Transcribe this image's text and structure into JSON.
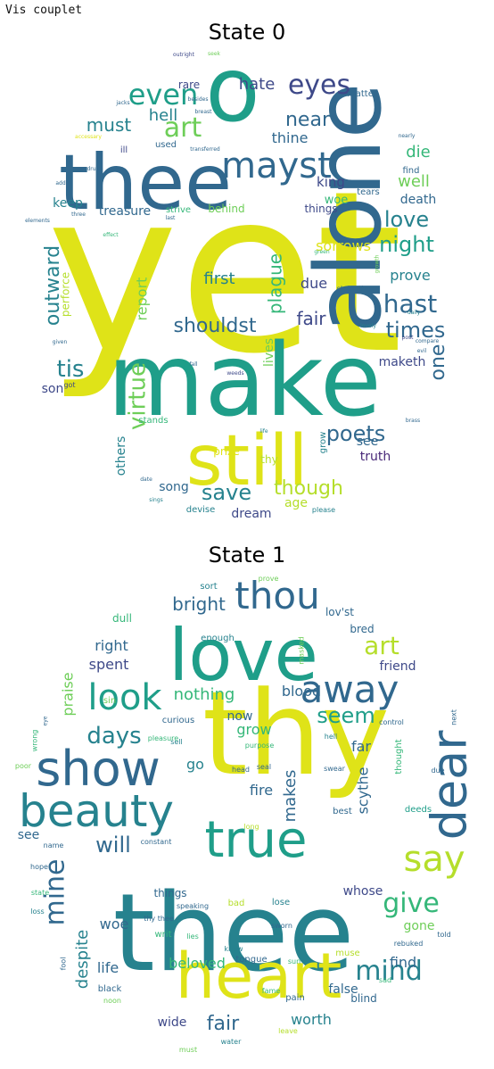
{
  "header": {
    "label": "Vis couplet"
  },
  "palette": [
    "#440154",
    "#482878",
    "#3e4989",
    "#31688e",
    "#26828e",
    "#1f9e89",
    "#35b779",
    "#6ece58",
    "#b5de2b",
    "#dfe318"
  ],
  "panels": [
    {
      "title": "State 0",
      "words": [
        {
          "t": "yet",
          "c": 9
        },
        {
          "t": "make",
          "c": 5
        },
        {
          "t": "still",
          "c": 9
        },
        {
          "t": "alone",
          "c": 3
        },
        {
          "t": "thee",
          "c": 3
        },
        {
          "t": "o",
          "c": 5
        },
        {
          "t": "mayst",
          "c": 3
        },
        {
          "t": "eyes",
          "c": 2
        },
        {
          "t": "even",
          "c": 5
        },
        {
          "t": "art",
          "c": 7
        },
        {
          "t": "near",
          "c": 3
        },
        {
          "t": "night",
          "c": 5
        },
        {
          "t": "love",
          "c": 4
        },
        {
          "t": "hast",
          "c": 3
        },
        {
          "t": "times",
          "c": 3
        },
        {
          "t": "shouldst",
          "c": 3
        },
        {
          "t": "virtue",
          "c": 7
        },
        {
          "t": "outward",
          "c": 4
        },
        {
          "t": "plague",
          "c": 6
        },
        {
          "t": "fair",
          "c": 2
        },
        {
          "t": "tis",
          "c": 4
        },
        {
          "t": "poets",
          "c": 3
        },
        {
          "t": "save",
          "c": 4
        },
        {
          "t": "though",
          "c": 8
        },
        {
          "t": "one",
          "c": 3
        },
        {
          "t": "must",
          "c": 4
        },
        {
          "t": "hate",
          "c": 2
        },
        {
          "t": "hell",
          "c": 4
        },
        {
          "t": "thine",
          "c": 3
        },
        {
          "t": "king",
          "c": 2
        },
        {
          "t": "die",
          "c": 6
        },
        {
          "t": "well",
          "c": 7
        },
        {
          "t": "death",
          "c": 3
        },
        {
          "t": "woe",
          "c": 6
        },
        {
          "t": "keep",
          "c": 4
        },
        {
          "t": "treasure",
          "c": 3
        },
        {
          "t": "sorrows",
          "c": 9
        },
        {
          "t": "first",
          "c": 4
        },
        {
          "t": "due",
          "c": 2
        },
        {
          "t": "prove",
          "c": 4
        },
        {
          "t": "report",
          "c": 7
        },
        {
          "t": "perforce",
          "c": 8
        },
        {
          "t": "maketh",
          "c": 2
        },
        {
          "t": "son",
          "c": 2
        },
        {
          "t": "lives",
          "c": 7
        },
        {
          "t": "others",
          "c": 4
        },
        {
          "t": "stands",
          "c": 6
        },
        {
          "t": "prize",
          "c": 9
        },
        {
          "t": "truth",
          "c": 1
        },
        {
          "t": "see",
          "c": 3
        },
        {
          "t": "song",
          "c": 3
        },
        {
          "t": "dream",
          "c": 2
        },
        {
          "t": "age",
          "c": 8
        },
        {
          "t": "thy",
          "c": 8
        },
        {
          "t": "grow",
          "c": 4
        },
        {
          "t": "rare",
          "c": 2
        },
        {
          "t": "matter",
          "c": 3
        },
        {
          "t": "strive",
          "c": 6
        },
        {
          "t": "behind",
          "c": 7
        },
        {
          "t": "things",
          "c": 2
        },
        {
          "t": "used",
          "c": 3
        },
        {
          "t": "ill",
          "c": 2
        },
        {
          "t": "find",
          "c": 3
        },
        {
          "t": "tears",
          "c": 3
        },
        {
          "t": "devise",
          "c": 4
        },
        {
          "t": "please",
          "c": 4
        },
        {
          "t": "fall",
          "c": 3
        },
        {
          "t": "weeds",
          "c": 2
        },
        {
          "t": "life",
          "c": 4
        },
        {
          "t": "brass",
          "c": 3
        },
        {
          "t": "staineth",
          "c": 3
        },
        {
          "t": "growth",
          "c": 7
        },
        {
          "t": "green",
          "c": 6
        },
        {
          "t": "daily",
          "c": 4
        },
        {
          "t": "lovely",
          "c": 4
        },
        {
          "t": "compare",
          "c": 3
        },
        {
          "t": "evil",
          "c": 3
        },
        {
          "t": "post",
          "c": 2
        },
        {
          "t": "given",
          "c": 3
        },
        {
          "t": "got",
          "c": 2
        },
        {
          "t": "sings",
          "c": 4
        },
        {
          "t": "date",
          "c": 3
        },
        {
          "t": "jacks",
          "c": 3
        },
        {
          "t": "besides",
          "c": 3
        },
        {
          "t": "breast",
          "c": 3
        },
        {
          "t": "accessary",
          "c": 9
        },
        {
          "t": "transferred",
          "c": 3
        },
        {
          "t": "drugs",
          "c": 3
        },
        {
          "t": "add",
          "c": 3
        },
        {
          "t": "elements",
          "c": 3
        },
        {
          "t": "effect",
          "c": 6
        },
        {
          "t": "three",
          "c": 3
        },
        {
          "t": "last",
          "c": 3
        },
        {
          "t": "nearly",
          "c": 3
        },
        {
          "t": "outright",
          "c": 2
        },
        {
          "t": "seek",
          "c": 7
        }
      ]
    },
    {
      "title": "State 1",
      "words": [
        {
          "t": "thy",
          "c": 9
        },
        {
          "t": "thee",
          "c": 4
        },
        {
          "t": "love",
          "c": 5
        },
        {
          "t": "heart",
          "c": 9
        },
        {
          "t": "show",
          "c": 3
        },
        {
          "t": "beauty",
          "c": 4
        },
        {
          "t": "true",
          "c": 5
        },
        {
          "t": "dear",
          "c": 3
        },
        {
          "t": "thou",
          "c": 3
        },
        {
          "t": "away",
          "c": 3
        },
        {
          "t": "look",
          "c": 5
        },
        {
          "t": "say",
          "c": 8
        },
        {
          "t": "give",
          "c": 6
        },
        {
          "t": "mine",
          "c": 3
        },
        {
          "t": "mind",
          "c": 4
        },
        {
          "t": "days",
          "c": 4
        },
        {
          "t": "will",
          "c": 3
        },
        {
          "t": "seem",
          "c": 5
        },
        {
          "t": "art",
          "c": 8
        },
        {
          "t": "fair",
          "c": 3
        },
        {
          "t": "bright",
          "c": 3
        },
        {
          "t": "nothing",
          "c": 6
        },
        {
          "t": "blood",
          "c": 3
        },
        {
          "t": "right",
          "c": 3
        },
        {
          "t": "spent",
          "c": 2
        },
        {
          "t": "praise",
          "c": 7
        },
        {
          "t": "friend",
          "c": 2
        },
        {
          "t": "far",
          "c": 3
        },
        {
          "t": "grow",
          "c": 6
        },
        {
          "t": "go",
          "c": 4
        },
        {
          "t": "fire",
          "c": 3
        },
        {
          "t": "makes",
          "c": 3
        },
        {
          "t": "scythe",
          "c": 3
        },
        {
          "t": "whose",
          "c": 2
        },
        {
          "t": "despite",
          "c": 4
        },
        {
          "t": "woe",
          "c": 3
        },
        {
          "t": "gone",
          "c": 7
        },
        {
          "t": "find",
          "c": 3
        },
        {
          "t": "beloved",
          "c": 6
        },
        {
          "t": "life",
          "c": 3
        },
        {
          "t": "false",
          "c": 3
        },
        {
          "t": "worth",
          "c": 4
        },
        {
          "t": "wide",
          "c": 2
        },
        {
          "t": "see",
          "c": 3
        },
        {
          "t": "now",
          "c": 3
        },
        {
          "t": "bred",
          "c": 3
        },
        {
          "t": "lov'st",
          "c": 3
        },
        {
          "t": "sort",
          "c": 4
        },
        {
          "t": "prove",
          "c": 7
        },
        {
          "t": "dull",
          "c": 6
        },
        {
          "t": "enough",
          "c": 4
        },
        {
          "t": "masked",
          "c": 7
        },
        {
          "t": "sin",
          "c": 7
        },
        {
          "t": "curious",
          "c": 3
        },
        {
          "t": "purpose",
          "c": 6
        },
        {
          "t": "next",
          "c": 3
        },
        {
          "t": "control",
          "c": 3
        },
        {
          "t": "hell",
          "c": 4
        },
        {
          "t": "sell",
          "c": 4
        },
        {
          "t": "pleasure",
          "c": 6
        },
        {
          "t": "thought",
          "c": 6
        },
        {
          "t": "wrong",
          "c": 6
        },
        {
          "t": "eye",
          "c": 3
        },
        {
          "t": "poor",
          "c": 7
        },
        {
          "t": "head",
          "c": 3
        },
        {
          "t": "seal",
          "c": 3
        },
        {
          "t": "swear",
          "c": 3
        },
        {
          "t": "long",
          "c": 8
        },
        {
          "t": "best",
          "c": 3
        },
        {
          "t": "deeds",
          "c": 5
        },
        {
          "t": "due",
          "c": 3
        },
        {
          "t": "name",
          "c": 3
        },
        {
          "t": "hope",
          "c": 3
        },
        {
          "t": "constant",
          "c": 3
        },
        {
          "t": "things",
          "c": 3
        },
        {
          "t": "speaking",
          "c": 3
        },
        {
          "t": "bad",
          "c": 8
        },
        {
          "t": "lose",
          "c": 4
        },
        {
          "t": "state",
          "c": 6
        },
        {
          "t": "loss",
          "c": 4
        },
        {
          "t": "thy thee",
          "c": 3
        },
        {
          "t": "writ",
          "c": 6
        },
        {
          "t": "know",
          "c": 4
        },
        {
          "t": "sworn",
          "c": 3
        },
        {
          "t": "lies",
          "c": 6
        },
        {
          "t": "told",
          "c": 3
        },
        {
          "t": "rebuked",
          "c": 3
        },
        {
          "t": "fool",
          "c": 3
        },
        {
          "t": "tongue",
          "c": 3
        },
        {
          "t": "muse",
          "c": 8
        },
        {
          "t": "sad",
          "c": 6
        },
        {
          "t": "black",
          "c": 3
        },
        {
          "t": "noon",
          "c": 7
        },
        {
          "t": "blind",
          "c": 3
        },
        {
          "t": "pain",
          "c": 3
        },
        {
          "t": "must",
          "c": 7
        },
        {
          "t": "leave",
          "c": 8
        },
        {
          "t": "water",
          "c": 4
        },
        {
          "t": "fame",
          "c": 6
        },
        {
          "t": "sun",
          "c": 6
        }
      ]
    }
  ]
}
